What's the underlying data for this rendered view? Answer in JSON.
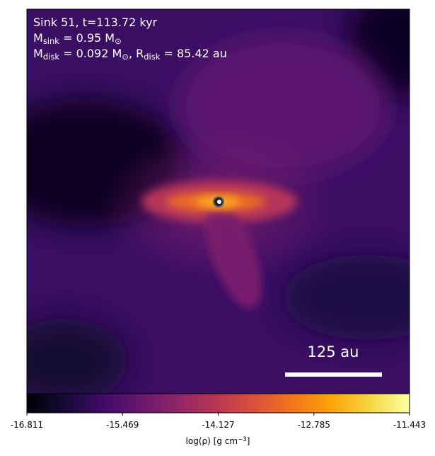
{
  "chart_data": {
    "type": "image",
    "annotations": [
      [
        {
          "text": "Sink 51, t=113.72 kyr"
        }
      ],
      [
        {
          "text": "M"
        },
        {
          "text": "sink",
          "sub": true
        },
        {
          "text": " = 0.95 M"
        },
        {
          "text": "⊙",
          "sub": true
        }
      ],
      [
        {
          "text": "M"
        },
        {
          "text": "disk",
          "sub": true
        },
        {
          "text": " = 0.092 M"
        },
        {
          "text": "⊙",
          "sub": true
        },
        {
          "text": ", R"
        },
        {
          "text": "disk",
          "sub": true
        },
        {
          "text": " = 85.42 au"
        }
      ]
    ],
    "scale_bar": "125 au",
    "colormap": "inferno",
    "colorbar": {
      "lim": [
        -16.811,
        -11.443
      ],
      "ticks": [
        -16.811,
        -15.469,
        -14.127,
        -12.785,
        -11.443
      ],
      "label": [
        {
          "text": "log(ρ) [g cm"
        },
        {
          "text": "−3",
          "sup": true
        },
        {
          "text": "]"
        }
      ]
    }
  }
}
